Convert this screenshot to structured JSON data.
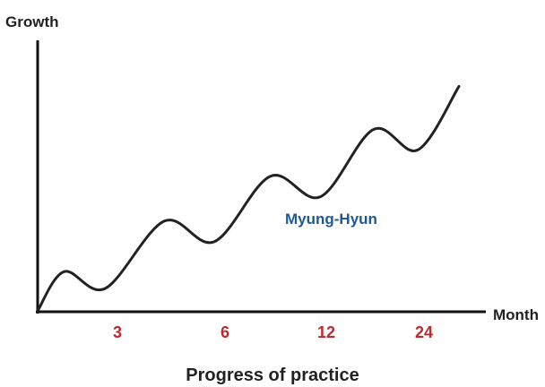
{
  "chart_data": {
    "type": "line",
    "ylabel": "Growth",
    "xlabel": "Month",
    "caption": "Progress of practice",
    "x_ticks": [
      "3",
      "6",
      "12",
      "24"
    ],
    "series": [
      {
        "name": "Myung-Hyun",
        "points": [
          [
            0,
            0
          ],
          [
            0.9,
            0.21
          ],
          [
            2.3,
            0.12
          ],
          [
            4.3,
            0.48
          ],
          [
            6.0,
            0.37
          ],
          [
            7.9,
            0.72
          ],
          [
            9.6,
            0.61
          ],
          [
            11.4,
            0.97
          ],
          [
            12.9,
            0.86
          ],
          [
            14.3,
            1.2
          ]
        ]
      }
    ],
    "ylim": [
      0,
      1.25
    ],
    "xlim": [
      0,
      14.3
    ],
    "grid": false,
    "colors": {
      "line": "#222222",
      "axis": "#111111",
      "tick_label": "#c0282e",
      "series_label": "#1b5a94"
    }
  }
}
